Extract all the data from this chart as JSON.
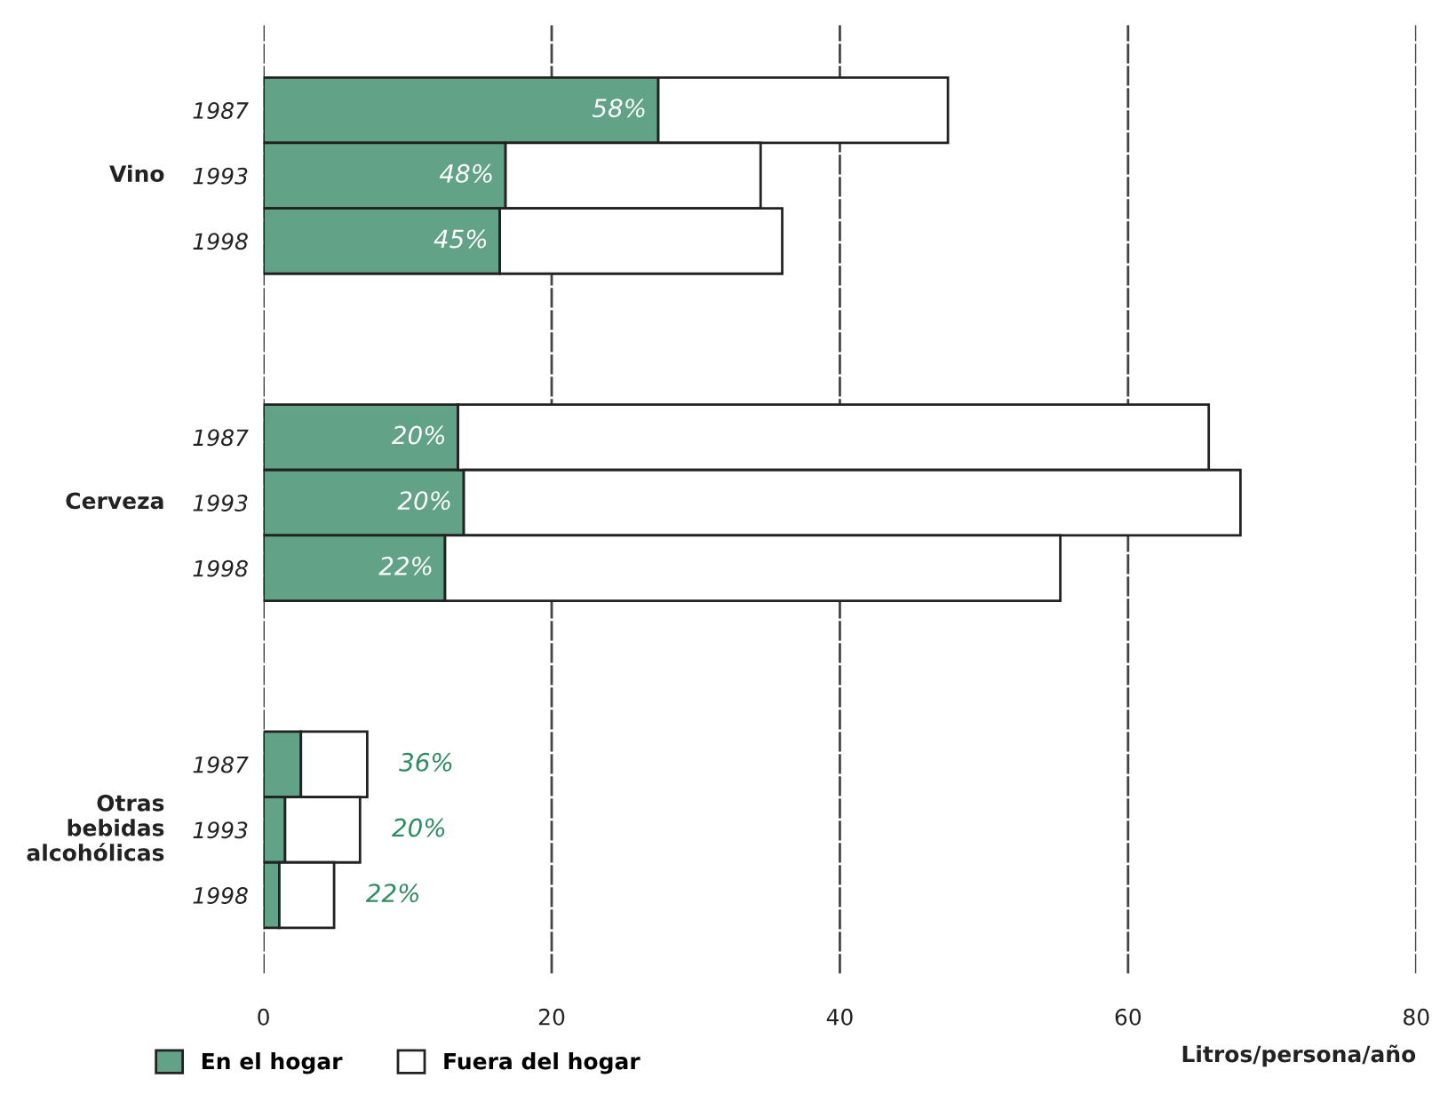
{
  "chart_data": {
    "type": "bar",
    "orientation": "horizontal",
    "stacked": true,
    "categories": [
      "1987",
      "1993",
      "1998",
      null,
      null,
      "1987",
      "1993",
      "1998",
      null,
      null,
      "1987",
      "1993",
      "1998"
    ],
    "series": [
      {
        "name": "En el hogar",
        "color": "#62a287",
        "values": [
          27.4,
          16.8,
          16.4,
          null,
          null,
          13.5,
          13.9,
          12.6,
          null,
          null,
          2.6,
          1.5,
          1.1
        ]
      },
      {
        "name": "Fuera del hogar",
        "color": "#ffffff",
        "values": [
          20.1,
          17.7,
          19.6,
          null,
          null,
          52.1,
          53.9,
          42.7,
          null,
          null,
          4.6,
          5.2,
          3.8
        ]
      }
    ],
    "annotations": [
      "Vino",
      "Cerveza",
      "Otras\nbebidas\nalcohólicas",
      "58%",
      "48%",
      "45%",
      "20%",
      "20%",
      "22%",
      "36%",
      "20%",
      "22%"
    ],
    "xlabel": "Litros/persona/año",
    "xlim": [
      0,
      80
    ],
    "xticks": [
      0,
      20,
      40,
      60,
      80
    ],
    "grid": "x",
    "legend": "bottom"
  }
}
